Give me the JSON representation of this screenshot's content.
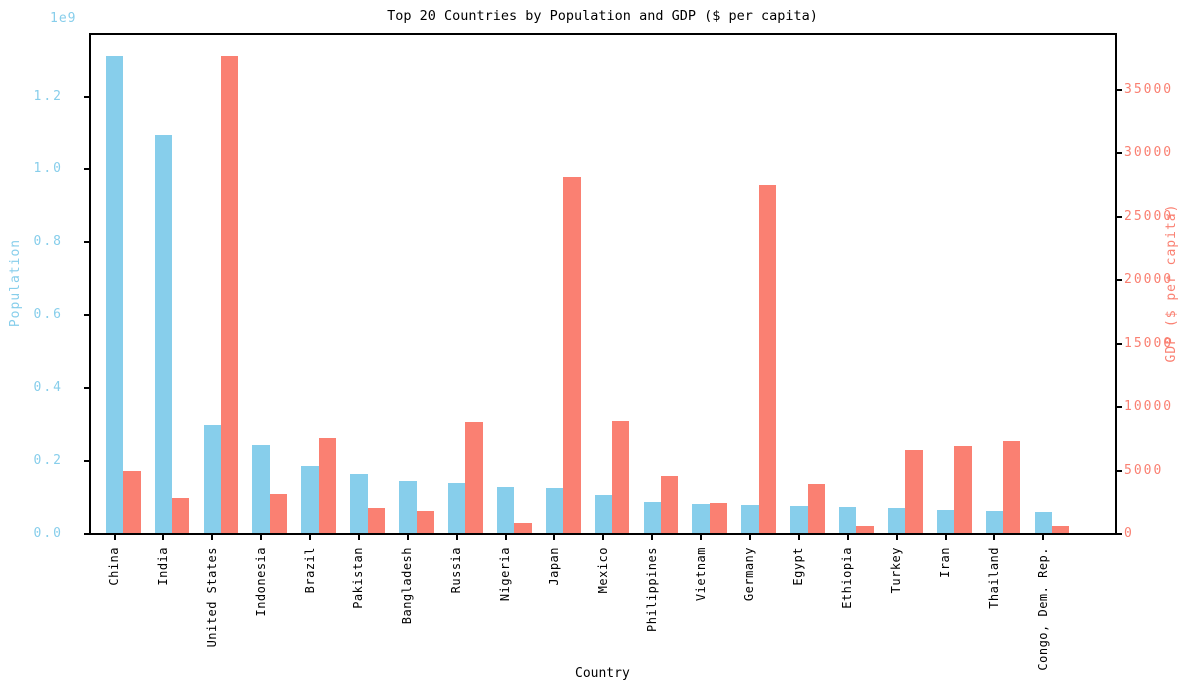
{
  "chart_data": {
    "type": "bar",
    "title": "Top 20 Countries by Population and GDP ($ per capita)",
    "xlabel": "Country",
    "categories": [
      "China",
      "India",
      "United States",
      "Indonesia",
      "Brazil",
      "Pakistan",
      "Bangladesh",
      "Russia",
      "Nigeria",
      "Japan",
      "Mexico",
      "Philippines",
      "Vietnam",
      "Germany",
      "Egypt",
      "Ethiopia",
      "Turkey",
      "Iran",
      "Thailand",
      "Congo, Dem. Rep."
    ],
    "series": [
      {
        "name": "Population",
        "axis": "left",
        "color": "#87CEEB",
        "values": [
          1310000000,
          1094000000,
          299000000,
          245000000,
          187000000,
          165000000,
          146000000,
          139000000,
          130000000,
          126000000,
          106000000,
          88000000,
          82000000,
          79000000,
          78000000,
          74000000,
          70000000,
          67000000,
          64000000,
          61000000
        ]
      },
      {
        "name": "GDP ($ per capita)",
        "axis": "right",
        "color": "#FA8072",
        "values": [
          4980,
          2850,
          37700,
          3190,
          7570,
          2050,
          1810,
          8800,
          840,
          28100,
          8880,
          4570,
          2440,
          27500,
          3940,
          630,
          6600,
          6960,
          7360,
          650
        ]
      }
    ],
    "left_axis": {
      "label": "Population",
      "offset_label": "1e9",
      "color": "#87CEEB",
      "ylim": [
        0,
        1373000000
      ],
      "tick_values": [
        0,
        200000000,
        400000000,
        600000000,
        800000000,
        1000000000,
        1200000000
      ],
      "tick_labels": [
        "0.0",
        "0.2",
        "0.4",
        "0.6",
        "0.8",
        "1.0",
        "1.2"
      ]
    },
    "right_axis": {
      "label": "GDP ($ per capita)",
      "color": "#FA8072",
      "ylim": [
        0,
        39450
      ],
      "tick_values": [
        0,
        5000,
        10000,
        15000,
        20000,
        25000,
        30000,
        35000
      ],
      "tick_labels": [
        "0",
        "5000",
        "10000",
        "15000",
        "20000",
        "25000",
        "30000",
        "35000"
      ]
    },
    "layout": {
      "grid": false,
      "legend": "none",
      "xtick_rotation": 90
    }
  }
}
